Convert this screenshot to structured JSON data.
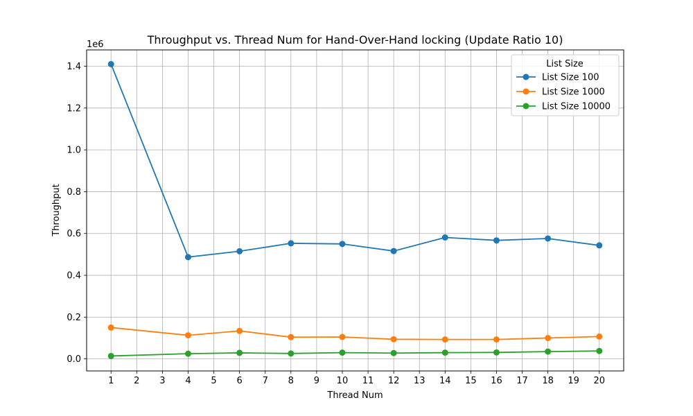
{
  "chart_data": {
    "type": "line",
    "title": "Throughput vs. Thread Num for Hand-Over-Hand locking (Update Ratio 10)",
    "xlabel": "Thread Num",
    "ylabel": "Throughput",
    "y_offset_label": "1e6",
    "xlim": [
      0.05,
      20.95
    ],
    "ylim": [
      -0.0575,
      1.478
    ],
    "x_ticks": [
      1,
      2,
      3,
      4,
      5,
      6,
      7,
      8,
      9,
      10,
      11,
      12,
      13,
      14,
      15,
      16,
      17,
      18,
      19,
      20
    ],
    "y_ticks": [
      0.0,
      0.2,
      0.4,
      0.6,
      0.8,
      1.0,
      1.2,
      1.4
    ],
    "y_tick_labels": [
      "0.0",
      "0.2",
      "0.4",
      "0.6",
      "0.8",
      "1.0",
      "1.2",
      "1.4"
    ],
    "grid": true,
    "legend": {
      "title": "List Size",
      "placement": "upper-right"
    },
    "x": [
      1,
      4,
      6,
      8,
      10,
      12,
      14,
      16,
      18,
      20
    ],
    "series": [
      {
        "name": "List Size 100",
        "color": "#1f77b4",
        "values": [
          1.41,
          0.487,
          0.515,
          0.553,
          0.55,
          0.516,
          0.581,
          0.567,
          0.576,
          0.543
        ]
      },
      {
        "name": "List Size 1000",
        "color": "#ff7f0e",
        "values": [
          0.15,
          0.113,
          0.134,
          0.104,
          0.105,
          0.094,
          0.093,
          0.093,
          0.1,
          0.107
        ]
      },
      {
        "name": "List Size 10000",
        "color": "#2ca02c",
        "values": [
          0.014,
          0.025,
          0.029,
          0.026,
          0.03,
          0.028,
          0.03,
          0.031,
          0.035,
          0.038
        ]
      }
    ]
  }
}
